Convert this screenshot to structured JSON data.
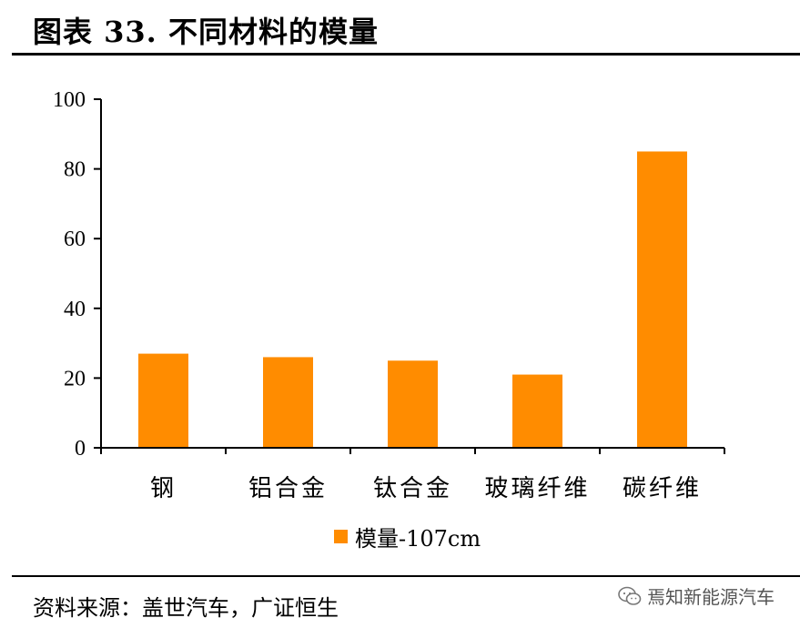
{
  "header": {
    "title": "图表 33. 不同材料的模量"
  },
  "footer": {
    "source": "资料来源：盖世汽车，广证恒生",
    "watermark": "焉知新能源汽车"
  },
  "chart_data": {
    "type": "bar",
    "categories": [
      "钢",
      "铝合金",
      "钛合金",
      "玻璃纤维",
      "碳纤维"
    ],
    "series": [
      {
        "name": "模量-107cm",
        "values": [
          27,
          26,
          25,
          21,
          85
        ],
        "color": "#FF8C00"
      }
    ],
    "yticks": [
      0,
      20,
      40,
      60,
      80,
      100
    ],
    "ylim": [
      0,
      100
    ],
    "grid": false,
    "legend_position": "bottom-center"
  }
}
